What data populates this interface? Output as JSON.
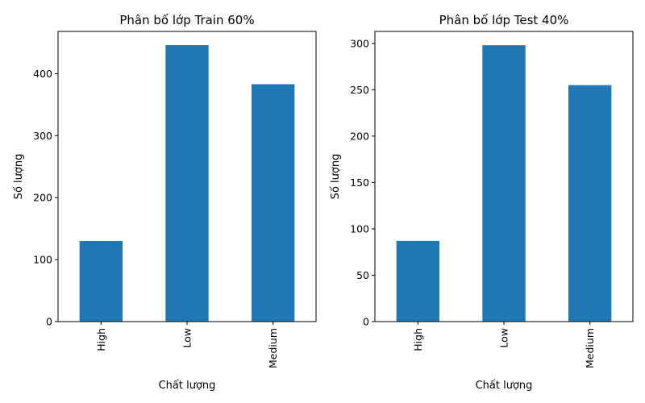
{
  "colors": {
    "bar": "#1f77b4",
    "axis": "#000000",
    "background": "#ffffff"
  },
  "chart_data": [
    {
      "type": "bar",
      "title": "Phân bố lớp Train 60%",
      "xlabel": "Chất lượng",
      "ylabel": "Số lượng",
      "categories": [
        "High",
        "Low",
        "Medium"
      ],
      "values": [
        130,
        446,
        383
      ],
      "ylim": [
        0,
        468.15
      ],
      "yticks": [
        0,
        100,
        200,
        300,
        400
      ],
      "grid": false,
      "legend": "none"
    },
    {
      "type": "bar",
      "title": "Phân bố lớp Test 40%",
      "xlabel": "Chất lượng",
      "ylabel": "Số lượng",
      "categories": [
        "High",
        "Low",
        "Medium"
      ],
      "values": [
        87,
        298,
        255
      ],
      "ylim": [
        0,
        312.9
      ],
      "yticks": [
        0,
        50,
        100,
        150,
        200,
        250,
        300
      ],
      "grid": false,
      "legend": "none"
    }
  ]
}
